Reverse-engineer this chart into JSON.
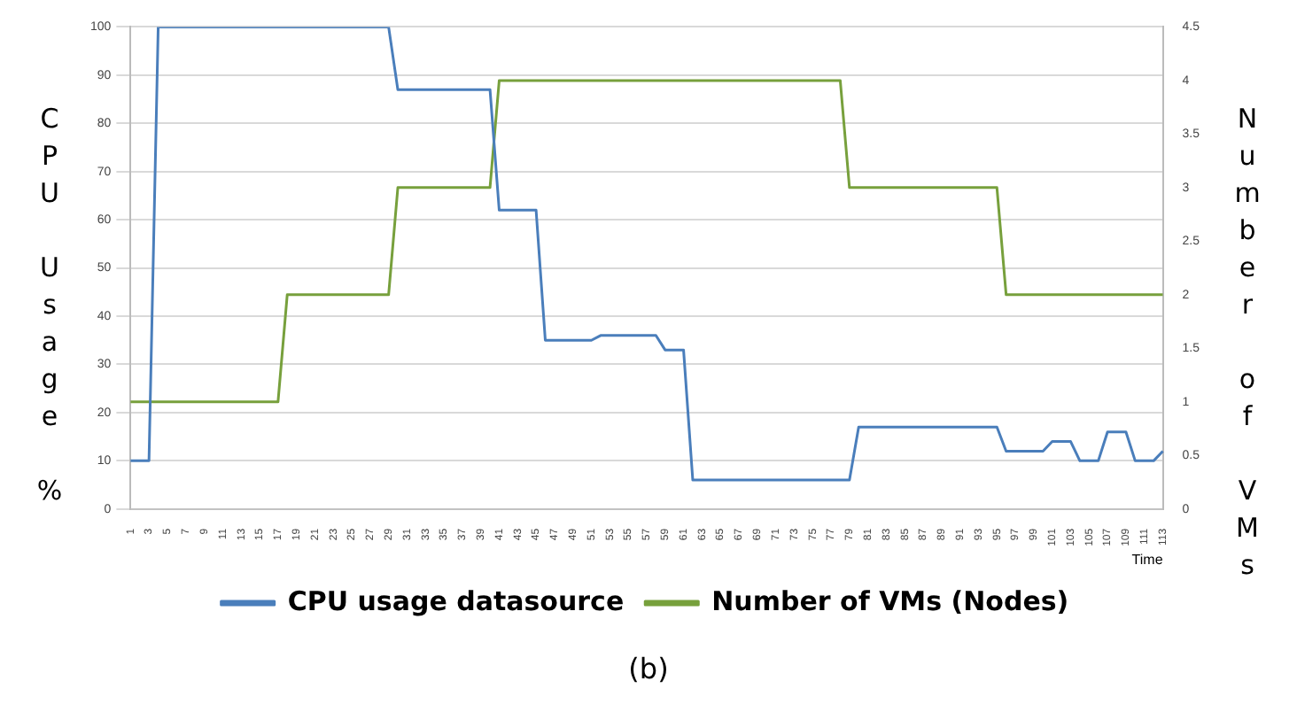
{
  "chart_data": {
    "type": "line",
    "xlabel": "Time",
    "ylabel": "CPU Usage %",
    "y2label": "Number of VMs",
    "annotations": [
      "(b)"
    ],
    "categories": [
      "1",
      null,
      "3",
      null,
      "5",
      null,
      "7",
      null,
      "9",
      null,
      "11",
      null,
      "13",
      null,
      "15",
      null,
      "17",
      null,
      "19",
      null,
      "21",
      null,
      "23",
      null,
      "25",
      null,
      "27",
      null,
      "29",
      null,
      "31",
      null,
      "33",
      null,
      "35",
      null,
      "37",
      null,
      "39",
      null,
      "41",
      null,
      "43",
      null,
      "45",
      null,
      "47",
      null,
      "49",
      null,
      "51",
      null,
      "53",
      null,
      "55",
      null,
      "57",
      null,
      "59",
      null,
      "61",
      null,
      "63",
      null,
      "65",
      null,
      "67",
      null,
      "69",
      null,
      "71",
      null,
      "73",
      null,
      "75",
      null,
      "77",
      null,
      "79",
      null,
      "81",
      null,
      "83",
      null,
      "85",
      null,
      "87",
      null,
      "89",
      null,
      "91",
      null,
      "93",
      null,
      "95",
      null,
      "97",
      null,
      "99",
      null,
      "101",
      null,
      "103",
      null,
      "105",
      null,
      "107",
      null,
      "109",
      null,
      "111",
      null,
      "113"
    ],
    "series": [
      {
        "name": "CPU usage datasource",
        "color": "#4a7ebb",
        "values": [
          10,
          10,
          10,
          100,
          100,
          100,
          100,
          100,
          100,
          100,
          100,
          100,
          100,
          100,
          100,
          100,
          100,
          100,
          100,
          100,
          100,
          100,
          100,
          100,
          100,
          100,
          100,
          100,
          100,
          87,
          87,
          87,
          87,
          87,
          87,
          87,
          87,
          87,
          87,
          87,
          62,
          62,
          62,
          62,
          62,
          35,
          35,
          35,
          35,
          35,
          35,
          36,
          36,
          36,
          36,
          36,
          36,
          36,
          33,
          33,
          33,
          6,
          6,
          6,
          6,
          6,
          6,
          6,
          6,
          6,
          6,
          6,
          6,
          6,
          6,
          6,
          6,
          6,
          6,
          17,
          17,
          17,
          17,
          17,
          17,
          17,
          17,
          17,
          17,
          17,
          17,
          17,
          17,
          17,
          17,
          12,
          12,
          12,
          12,
          12,
          14,
          14,
          14,
          10,
          10,
          10,
          16,
          16,
          16,
          10,
          10,
          10,
          12
        ]
      },
      {
        "name": "Number of VMs (Nodes)",
        "color": "#77a03c",
        "axis": "y2",
        "values": [
          1,
          1,
          1,
          1,
          1,
          1,
          1,
          1,
          1,
          1,
          1,
          1,
          1,
          1,
          1,
          1,
          1,
          2,
          2,
          2,
          2,
          2,
          2,
          2,
          2,
          2,
          2,
          2,
          2,
          3,
          3,
          3,
          3,
          3,
          3,
          3,
          3,
          3,
          3,
          3,
          4,
          4,
          4,
          4,
          4,
          4,
          4,
          4,
          4,
          4,
          4,
          4,
          4,
          4,
          4,
          4,
          4,
          4,
          4,
          4,
          4,
          4,
          4,
          4,
          4,
          4,
          4,
          4,
          4,
          4,
          4,
          4,
          4,
          4,
          4,
          4,
          4,
          4,
          3,
          3,
          3,
          3,
          3,
          3,
          3,
          3,
          3,
          3,
          3,
          3,
          3,
          3,
          3,
          3,
          3,
          2,
          2,
          2,
          2,
          2,
          2,
          2,
          2,
          2,
          2,
          2,
          2,
          2,
          2,
          2,
          2,
          2,
          2
        ]
      }
    ],
    "ylim": [
      0,
      100
    ],
    "yticks": [
      0,
      10,
      20,
      30,
      40,
      50,
      60,
      70,
      80,
      90,
      100
    ],
    "y2lim": [
      0,
      4.5
    ],
    "y2ticks": [
      0,
      0.5,
      1,
      1.5,
      2,
      2.5,
      3,
      3.5,
      4,
      4.5
    ],
    "grid": "y",
    "legend": "bottom",
    "marker": "none",
    "line_style": "solid"
  }
}
